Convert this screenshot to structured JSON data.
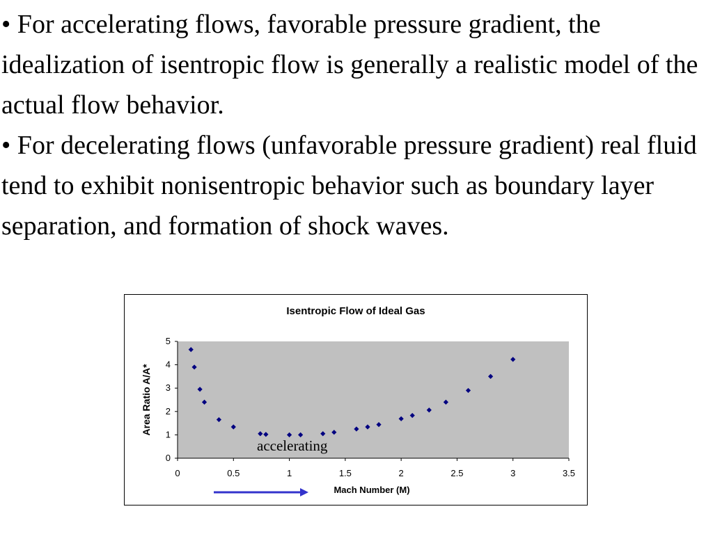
{
  "slide": {
    "bullet_1": "• For accelerating flows, favorable pressure gradient, the idealization of isentropic flow is generally a realistic model of the actual flow behavior.",
    "bullet_2": "• For decelerating flows (unfavorable pressure gradient) real fluid tend to exhibit nonisentropic behavior such as boundary layer separation, and formation  of shock waves."
  },
  "chart_data": {
    "type": "scatter",
    "title": "Isentropic Flow of Ideal Gas",
    "xlabel": "Mach Number (M)",
    "ylabel": "Area Ratio A/A*",
    "xlim": [
      0,
      3.5
    ],
    "ylim": [
      0,
      5
    ],
    "xticks": [
      "0",
      "0.5",
      "1",
      "1.5",
      "2",
      "2.5",
      "3",
      "3.5"
    ],
    "yticks": [
      "0",
      "1",
      "2",
      "3",
      "4",
      "5"
    ],
    "grid": false,
    "legend": "none",
    "series": [
      {
        "points": [
          [
            0.12,
            4.65
          ],
          [
            0.15,
            3.9
          ],
          [
            0.2,
            2.95
          ],
          [
            0.24,
            2.4
          ],
          [
            0.37,
            1.65
          ],
          [
            0.5,
            1.34
          ],
          [
            0.74,
            1.05
          ],
          [
            0.79,
            1.02
          ],
          [
            1.0,
            1.0
          ],
          [
            1.1,
            1.0
          ],
          [
            1.3,
            1.05
          ],
          [
            1.4,
            1.11
          ],
          [
            1.6,
            1.25
          ],
          [
            1.7,
            1.34
          ],
          [
            1.8,
            1.44
          ],
          [
            2.0,
            1.69
          ],
          [
            2.1,
            1.83
          ],
          [
            2.25,
            2.06
          ],
          [
            2.4,
            2.4
          ],
          [
            2.6,
            2.9
          ],
          [
            2.8,
            3.5
          ],
          [
            3.0,
            4.23
          ]
        ]
      }
    ],
    "annotation": "accelerating",
    "colors": {
      "plot_bg": "#c0c0c0",
      "marker": "#000080",
      "arrow": "#3333cc"
    }
  }
}
